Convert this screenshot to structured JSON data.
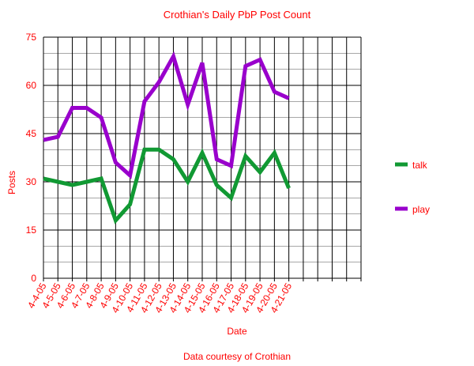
{
  "chart_data": {
    "type": "line",
    "title": "Crothian's Daily PbP Post Count",
    "xlabel": "Date",
    "ylabel": "Posts",
    "footer": "Data courtesy of Crothian",
    "ylim": [
      0,
      75
    ],
    "yticks": [
      0,
      15,
      30,
      45,
      60,
      75
    ],
    "grid": true,
    "legend_position": "right",
    "categories": [
      "4-4-05",
      "4-5-05",
      "4-6-05",
      "4-7-05",
      "4-8-05",
      "4-9-05",
      "4-10-05",
      "4-11-05",
      "4-12-05",
      "4-13-05",
      "4-14-05",
      "4-15-05",
      "4-16-05",
      "4-17-05",
      "4-18-05",
      "4-19-05",
      "4-20-05",
      "4-21-05"
    ],
    "empty_slots_after": 5,
    "text_color": "#ff0000",
    "series": [
      {
        "name": "talk",
        "color": "#119933",
        "values": [
          31,
          30,
          29,
          30,
          31,
          18,
          23,
          40,
          40,
          37,
          30,
          39,
          29,
          25,
          38,
          33,
          39,
          28
        ]
      },
      {
        "name": "play",
        "color": "#9900cc",
        "values": [
          43,
          44,
          53,
          53,
          50,
          36,
          32,
          55,
          61,
          69,
          54,
          67,
          37,
          35,
          66,
          68,
          58,
          56
        ]
      }
    ]
  }
}
